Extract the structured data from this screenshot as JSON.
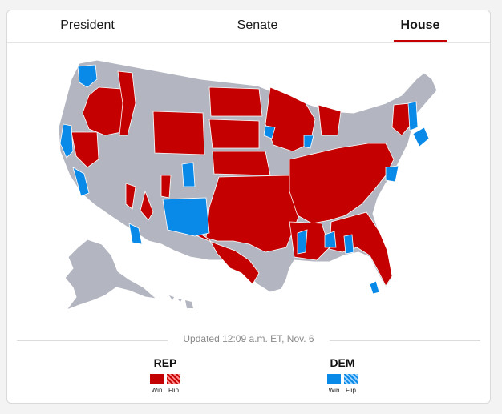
{
  "tabs": [
    {
      "label": "President",
      "active": false
    },
    {
      "label": "Senate",
      "active": false
    },
    {
      "label": "House",
      "active": true
    }
  ],
  "map": {
    "colors": {
      "rep": "#c40000",
      "dem": "#0a8ae8",
      "undecided": "#b3b6c0",
      "border": "#ffffff"
    }
  },
  "updated": "Updated 12:09 a.m. ET, Nov. 6",
  "legend": {
    "rep": {
      "title": "REP",
      "win": "Win",
      "flip": "Flip"
    },
    "dem": {
      "title": "DEM",
      "win": "Win",
      "flip": "Flip"
    }
  }
}
